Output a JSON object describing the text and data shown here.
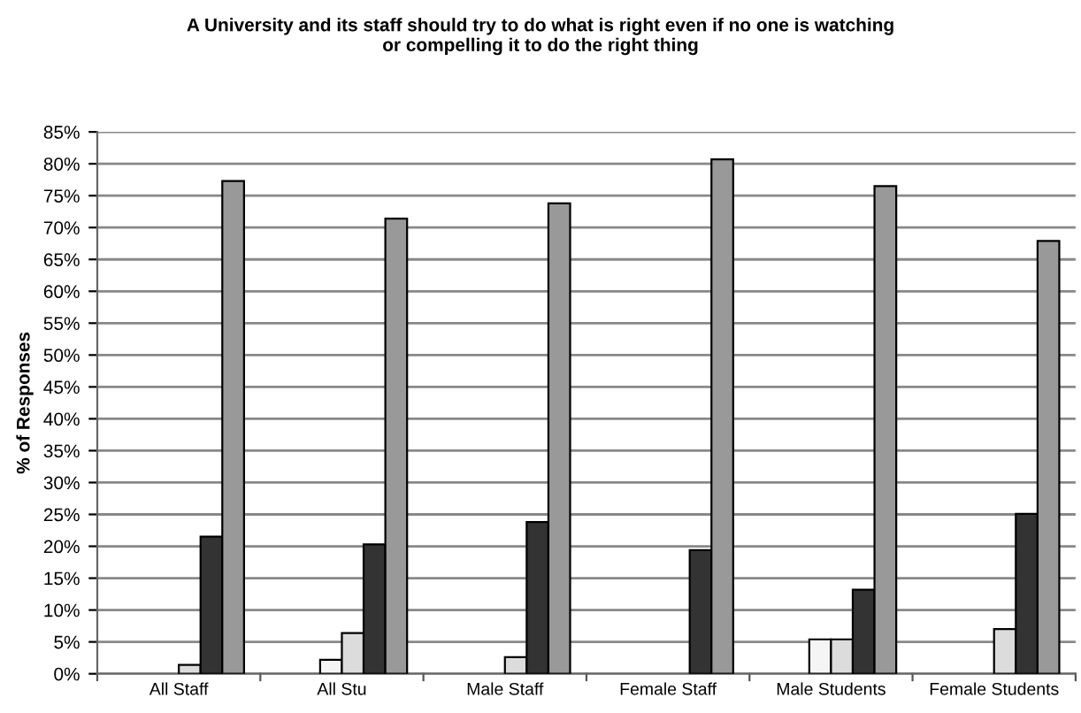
{
  "chart_data": {
    "type": "bar",
    "title": "A University and its staff should try to do what is right even if no one is watching\nor compelling it to do the right thing",
    "ylabel": "% of Responses",
    "categories": [
      "All Staff",
      "All Stu",
      "Male Staff",
      "Female Staff",
      "Male Students",
      "Female Students"
    ],
    "series": [
      {
        "values": [
          null,
          null,
          null,
          null,
          null,
          null
        ]
      },
      {
        "values": [
          null,
          null,
          null,
          null,
          null,
          null
        ]
      },
      {
        "color": "#f5f5f5",
        "values": [
          null,
          2.2,
          null,
          null,
          5.4,
          null
        ]
      },
      {
        "color": "#dcdcdc",
        "values": [
          1.4,
          6.4,
          2.6,
          null,
          5.4,
          7.0
        ]
      },
      {
        "color": "#333333",
        "values": [
          21.5,
          20.3,
          23.8,
          19.4,
          13.2,
          25.1
        ]
      },
      {
        "color": "#999999",
        "values": [
          77.3,
          71.4,
          73.8,
          80.7,
          76.5,
          67.9
        ]
      }
    ],
    "ylim": [
      0,
      85
    ],
    "yticks": [
      {
        "value": 0,
        "label": "0%"
      },
      {
        "value": 5,
        "label": "5%"
      },
      {
        "value": 10,
        "label": "10%"
      },
      {
        "value": 15,
        "label": "15%"
      },
      {
        "value": 20,
        "label": "20%"
      },
      {
        "value": 25,
        "label": "25%"
      },
      {
        "value": 30,
        "label": "30%"
      },
      {
        "value": 35,
        "label": "35%"
      },
      {
        "value": 40,
        "label": "40%"
      },
      {
        "value": 45,
        "label": "45%"
      },
      {
        "value": 50,
        "label": "50%"
      },
      {
        "value": 55,
        "label": "55%"
      },
      {
        "value": 60,
        "label": "60%"
      },
      {
        "value": 65,
        "label": "65%"
      },
      {
        "value": 70,
        "label": "70%"
      },
      {
        "value": 75,
        "label": "75%"
      },
      {
        "value": 80,
        "label": "80%"
      },
      {
        "value": 85,
        "label": "85%"
      }
    ],
    "grid": "y",
    "legend": false
  }
}
